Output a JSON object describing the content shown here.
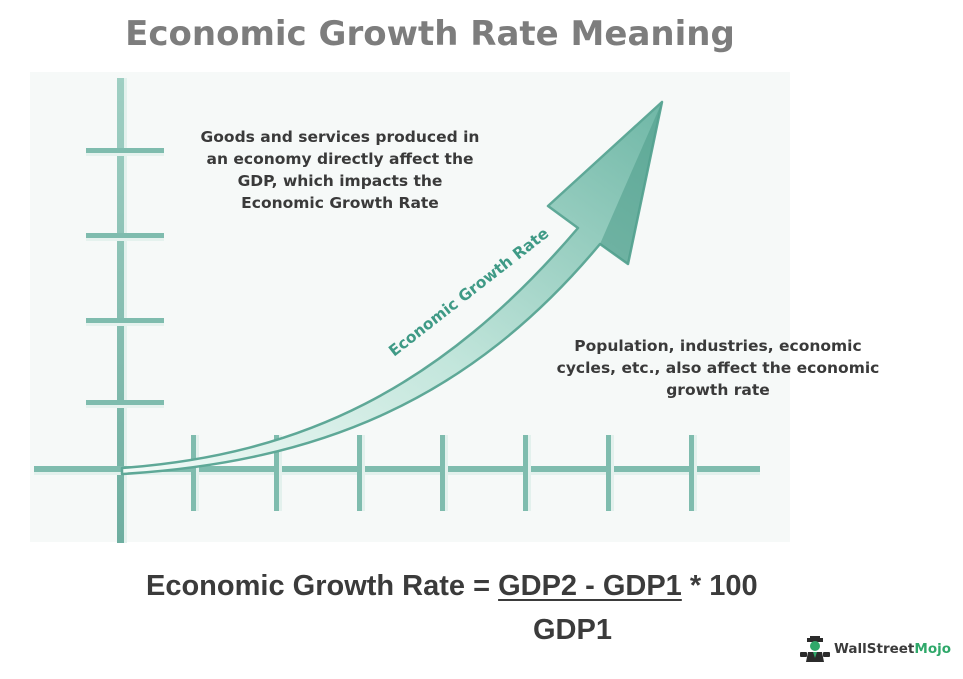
{
  "title": "Economic Growth Rate Meaning",
  "arrow_label": "Economic Growth Rate",
  "notes": {
    "top": [
      "Goods and services produced in",
      "an economy directly affect the",
      "GDP, which impacts the",
      "Economic Growth Rate"
    ],
    "right": [
      "Population, industries, economic",
      "cycles, etc., also affect the economic",
      "growth rate"
    ]
  },
  "formula": {
    "lhs": "Economic Growth Rate = ",
    "numerator": "GDP2 - GDP1",
    "multiplier": " * 100",
    "denominator": "GDP1"
  },
  "brand": {
    "part1": "Wall",
    "part2": "Street",
    "part3": "Mojo"
  },
  "colors": {
    "teal_dark": "#4c9a8a",
    "teal_light": "#bfe2d8",
    "text": "#3a3a3a",
    "title": "#7d7d7d",
    "brand_green": "#2fa86a"
  }
}
